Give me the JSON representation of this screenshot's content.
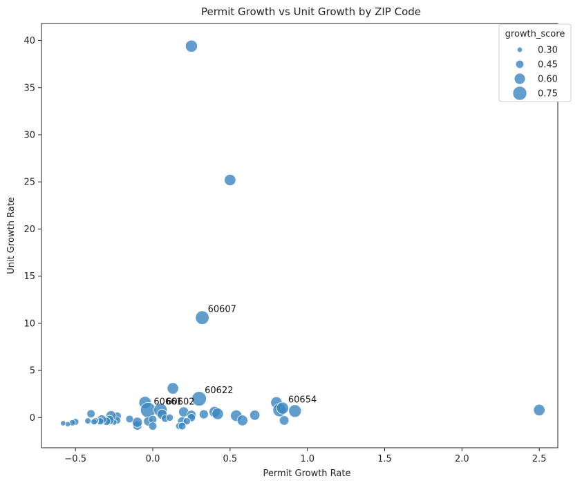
{
  "chart_data": {
    "type": "scatter",
    "title": "Permit Growth vs Unit Growth by ZIP Code",
    "xlabel": "Permit Growth Rate",
    "ylabel": "Unit Growth Rate",
    "xlim": [
      -0.72,
      2.62
    ],
    "ylim": [
      -3.2,
      41.8
    ],
    "xticks": [
      -0.5,
      0.0,
      0.5,
      1.0,
      1.5,
      2.0,
      2.5
    ],
    "xtick_labels": [
      "−0.5",
      "0.0",
      "0.5",
      "1.0",
      "1.5",
      "2.0",
      "2.5"
    ],
    "yticks": [
      0,
      5,
      10,
      15,
      20,
      25,
      30,
      35,
      40
    ],
    "ytick_labels": [
      "0",
      "5",
      "10",
      "15",
      "20",
      "25",
      "30",
      "35",
      "40"
    ],
    "grid": false,
    "marker_color": "#3a86c0",
    "legend": {
      "title": "growth_score",
      "placement": "top-right",
      "entries": [
        {
          "label": "0.30",
          "value": 0.3
        },
        {
          "label": "0.45",
          "value": 0.45
        },
        {
          "label": "0.60",
          "value": 0.6
        },
        {
          "label": "0.75",
          "value": 0.75
        }
      ]
    },
    "points": [
      {
        "x": 0.25,
        "y": 39.4,
        "s": 0.65
      },
      {
        "x": 0.5,
        "y": 25.2,
        "s": 0.62
      },
      {
        "x": 0.32,
        "y": 10.6,
        "s": 0.73
      },
      {
        "x": 0.13,
        "y": 3.1,
        "s": 0.62
      },
      {
        "x": 0.3,
        "y": 2.0,
        "s": 0.78
      },
      {
        "x": -0.05,
        "y": 1.6,
        "s": 0.66
      },
      {
        "x": -0.03,
        "y": 0.8,
        "s": 0.82
      },
      {
        "x": 0.05,
        "y": 0.8,
        "s": 0.72
      },
      {
        "x": 0.06,
        "y": 0.35,
        "s": 0.55
      },
      {
        "x": 0.08,
        "y": -0.1,
        "s": 0.42
      },
      {
        "x": 0.11,
        "y": 0.0,
        "s": 0.4
      },
      {
        "x": 0.2,
        "y": 0.6,
        "s": 0.55
      },
      {
        "x": 0.25,
        "y": 0.3,
        "s": 0.5
      },
      {
        "x": 0.25,
        "y": 0.0,
        "s": 0.45
      },
      {
        "x": 0.19,
        "y": -0.4,
        "s": 0.5
      },
      {
        "x": 0.22,
        "y": -0.4,
        "s": 0.4
      },
      {
        "x": 0.17,
        "y": -0.9,
        "s": 0.38
      },
      {
        "x": 0.19,
        "y": -0.9,
        "s": 0.42
      },
      {
        "x": 0.33,
        "y": 0.35,
        "s": 0.5
      },
      {
        "x": 0.4,
        "y": 0.6,
        "s": 0.6
      },
      {
        "x": 0.42,
        "y": 0.4,
        "s": 0.62
      },
      {
        "x": 0.54,
        "y": 0.2,
        "s": 0.62
      },
      {
        "x": 0.58,
        "y": -0.3,
        "s": 0.58
      },
      {
        "x": 0.66,
        "y": 0.25,
        "s": 0.55
      },
      {
        "x": 0.8,
        "y": 1.6,
        "s": 0.62
      },
      {
        "x": 0.82,
        "y": 0.8,
        "s": 0.72
      },
      {
        "x": 0.84,
        "y": 1.0,
        "s": 0.65
      },
      {
        "x": 0.85,
        "y": -0.3,
        "s": 0.52
      },
      {
        "x": 0.92,
        "y": 0.7,
        "s": 0.68
      },
      {
        "x": 2.5,
        "y": 0.8,
        "s": 0.62
      },
      {
        "x": -0.03,
        "y": -0.4,
        "s": 0.5
      },
      {
        "x": 0.0,
        "y": -0.2,
        "s": 0.45
      },
      {
        "x": 0.0,
        "y": -0.9,
        "s": 0.45
      },
      {
        "x": -0.1,
        "y": -0.85,
        "s": 0.5
      },
      {
        "x": -0.1,
        "y": -0.5,
        "s": 0.55
      },
      {
        "x": -0.15,
        "y": -0.15,
        "s": 0.42
      },
      {
        "x": -0.23,
        "y": 0.15,
        "s": 0.45
      },
      {
        "x": -0.23,
        "y": -0.3,
        "s": 0.4
      },
      {
        "x": -0.25,
        "y": -0.5,
        "s": 0.32
      },
      {
        "x": -0.27,
        "y": 0.2,
        "s": 0.55
      },
      {
        "x": -0.28,
        "y": -0.25,
        "s": 0.5
      },
      {
        "x": -0.3,
        "y": -0.4,
        "s": 0.45
      },
      {
        "x": -0.33,
        "y": -0.2,
        "s": 0.5
      },
      {
        "x": -0.34,
        "y": -0.4,
        "s": 0.4
      },
      {
        "x": -0.37,
        "y": -0.35,
        "s": 0.35
      },
      {
        "x": -0.38,
        "y": -0.45,
        "s": 0.35
      },
      {
        "x": -0.4,
        "y": 0.4,
        "s": 0.45
      },
      {
        "x": -0.42,
        "y": -0.35,
        "s": 0.35
      },
      {
        "x": -0.5,
        "y": -0.45,
        "s": 0.38
      },
      {
        "x": -0.52,
        "y": -0.55,
        "s": 0.35
      },
      {
        "x": -0.55,
        "y": -0.7,
        "s": 0.3
      },
      {
        "x": -0.58,
        "y": -0.6,
        "s": 0.3
      }
    ],
    "annotations": [
      {
        "text": "60607",
        "x": 0.32,
        "y": 10.6
      },
      {
        "text": "60622",
        "x": 0.3,
        "y": 2.0
      },
      {
        "text": "60654",
        "x": 0.84,
        "y": 1.0
      },
      {
        "text": "60661",
        "x": -0.03,
        "y": 0.8
      },
      {
        "text": "60602",
        "x": 0.05,
        "y": 0.8
      }
    ]
  }
}
